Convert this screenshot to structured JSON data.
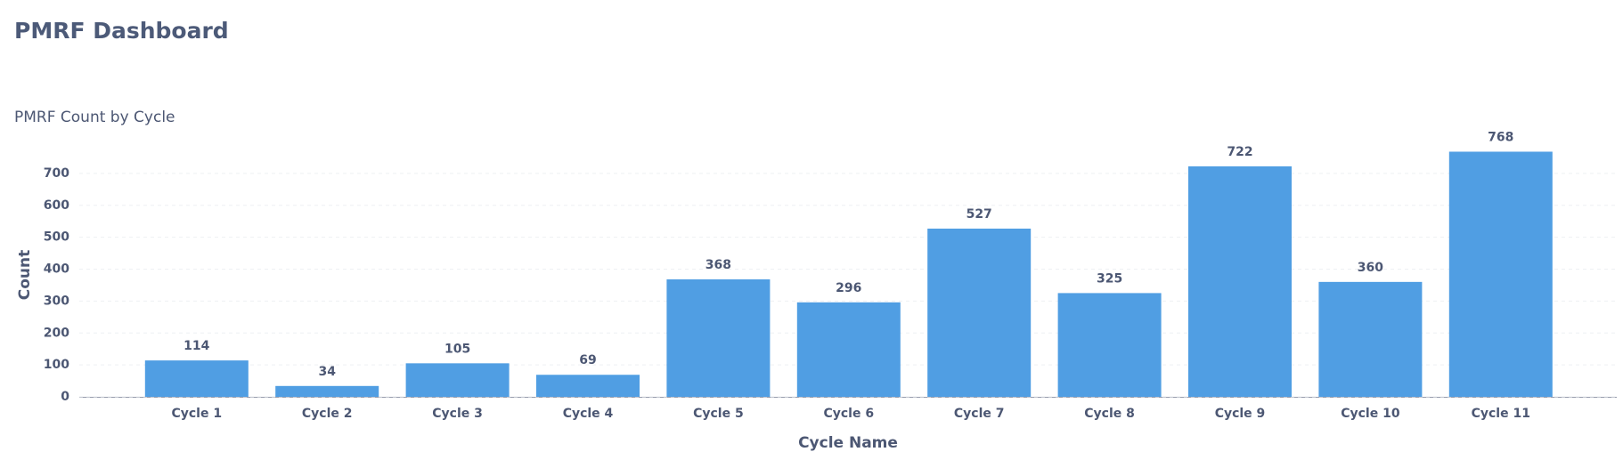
{
  "dashboard": {
    "title": "PMRF Dashboard"
  },
  "chart_data": {
    "type": "bar",
    "title": "PMRF Count by Cycle",
    "x_label": "Cycle Name",
    "y_label": "Count",
    "categories": [
      "Cycle 1",
      "Cycle 2",
      "Cycle 3",
      "Cycle 4",
      "Cycle 5",
      "Cycle 6",
      "Cycle 7",
      "Cycle 8",
      "Cycle 9",
      "Cycle 10",
      "Cycle 11"
    ],
    "values": [
      114,
      34,
      105,
      69,
      368,
      296,
      527,
      325,
      722,
      360,
      768
    ],
    "color": "#509ee3",
    "ylim": [
      0,
      800
    ],
    "yticks": [
      0,
      100,
      200,
      300,
      400,
      500,
      600,
      700
    ],
    "grid": true
  }
}
